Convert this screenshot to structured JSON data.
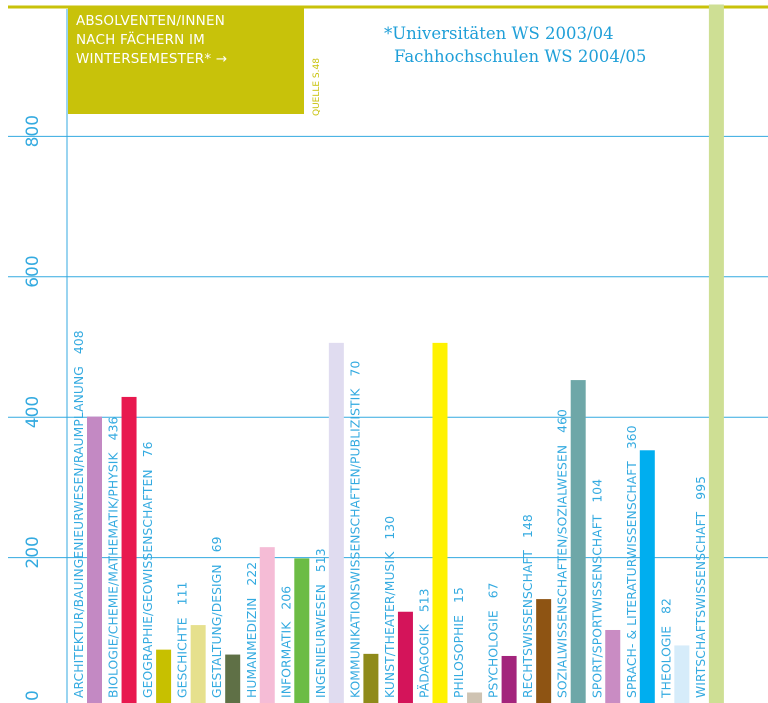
{
  "title_lines": [
    "ABSOLVENTEN/INNEN",
    "NACH FÄCHERN IM",
    "WINTERSEMESTER* →"
  ],
  "source": "QUELLE S.48",
  "note_lines": [
    "*Universitäten WS 2003/04",
    "Fachhochschulen WS 2004/05"
  ],
  "colors": {
    "accent": "#c8c20a",
    "axis": "#33aae0",
    "note_text": "#1f9fd8"
  },
  "chart_data": {
    "type": "bar",
    "ylim": [
      0,
      1000
    ],
    "yticks": [
      0,
      200,
      400,
      600,
      800
    ],
    "grid": true,
    "categories": [
      "ARCHITEKTUR/BAUINGENIEURWESEN/RAUMPLANUNG",
      "BIOLOGIE/CHEMIE/MATHEMATIK/PHYSIK",
      "GEOGRAPHIE/GEOWISSENSCHAFTEN",
      "GESCHICHTE",
      "GESTALTUNG/DESIGN",
      "HUMANMEDIZIN",
      "INFORMATIK",
      "INGENIEURWESEN",
      "KOMMUNIKATIONSWISSENSCHAFTEN/PUBLIZISTIK",
      "KUNST/THEATER/MUSIK",
      "PÄDAGOGIK",
      "PHILOSOPHIE",
      "PSYCHOLOGIE",
      "RECHTSWISSENSCHAFT",
      "SOZIALWISSENSCHAFTEN/SOZIALWESEN",
      "SPORT/SPORTWISSENSCHAFT",
      "SPRACH- & LITERATURWISSENSCHAFT",
      "THEOLOGIE",
      "WIRTSCHAFTSWISSENSCHAFT"
    ],
    "values": [
      408,
      436,
      76,
      111,
      69,
      222,
      206,
      513,
      70,
      130,
      513,
      15,
      67,
      148,
      460,
      104,
      360,
      82,
      995
    ],
    "value_labels": [
      "408",
      "436",
      "76",
      "111",
      "69",
      "222",
      "206",
      "513",
      "70",
      "130",
      "513",
      "15",
      "67",
      "148",
      "460",
      "104",
      "360",
      "82",
      "995"
    ],
    "colors": [
      "#c389c3",
      "#e8194f",
      "#c7c000",
      "#e6e08d",
      "#5f7046",
      "#f5bcd6",
      "#6cbc45",
      "#e0dcf0",
      "#8f8a1a",
      "#d4145a",
      "#fff200",
      "#cfc3b2",
      "#a3247c",
      "#8e5413",
      "#6ea7a8",
      "#c98cc3",
      "#00aeef",
      "#d6ecfa",
      "#cedf94"
    ]
  }
}
